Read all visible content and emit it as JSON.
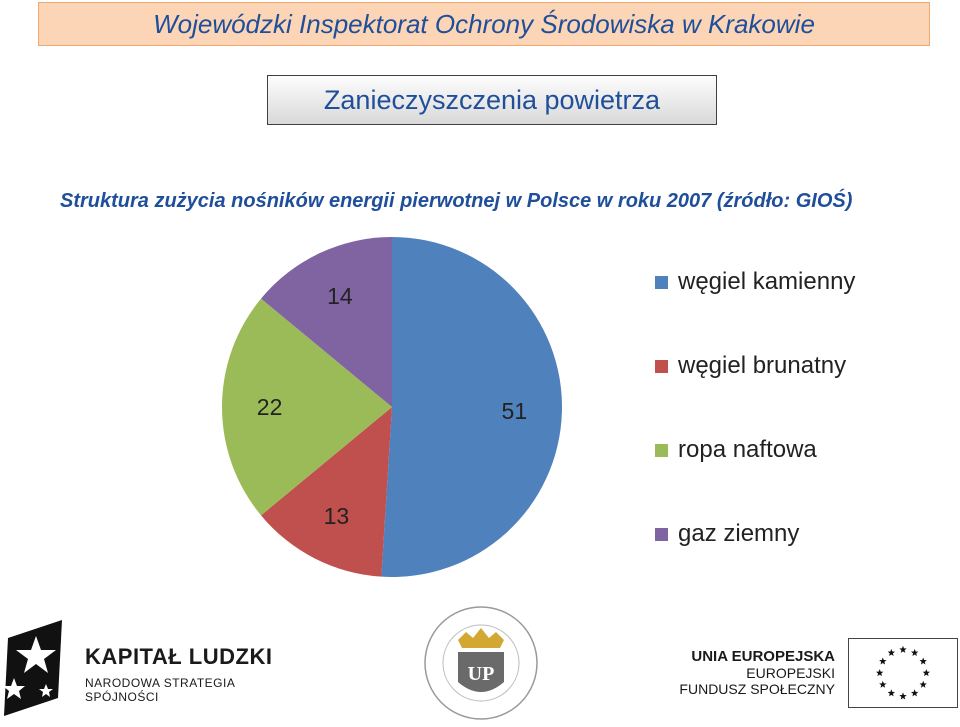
{
  "header": {
    "title": "Wojewódzki Inspektorat Ochrony Środowiska w Krakowie"
  },
  "slide": {
    "title": "Zanieczyszczenia powietrza",
    "subtitle": "Struktura zużycia nośników energii pierwotnej w Polsce w roku 2007 (źródło: GIOŚ)"
  },
  "chart_data": {
    "type": "pie",
    "categories": [
      "węgiel kamienny",
      "węgiel brunatny",
      "ropa naftowa",
      "gaz ziemny"
    ],
    "values": [
      51,
      13,
      22,
      14
    ],
    "data_labels": [
      "51",
      "13",
      "22",
      "14"
    ],
    "colors": [
      "#4f81bd",
      "#c0504d",
      "#9bbb59",
      "#8064a2"
    ],
    "legend_position": "right",
    "start": "top, clockwise"
  },
  "footer": {
    "kapital_title": "KAPITAŁ LUDZKI",
    "kapital_sub": "NARODOWA STRATEGIA SPÓJNOŚCI",
    "university_initials": "UP",
    "ue_line1": "UNIA EUROPEJSKA",
    "ue_line2": "EUROPEJSKI",
    "ue_line3": "FUNDUSZ SPOŁECZNY"
  }
}
